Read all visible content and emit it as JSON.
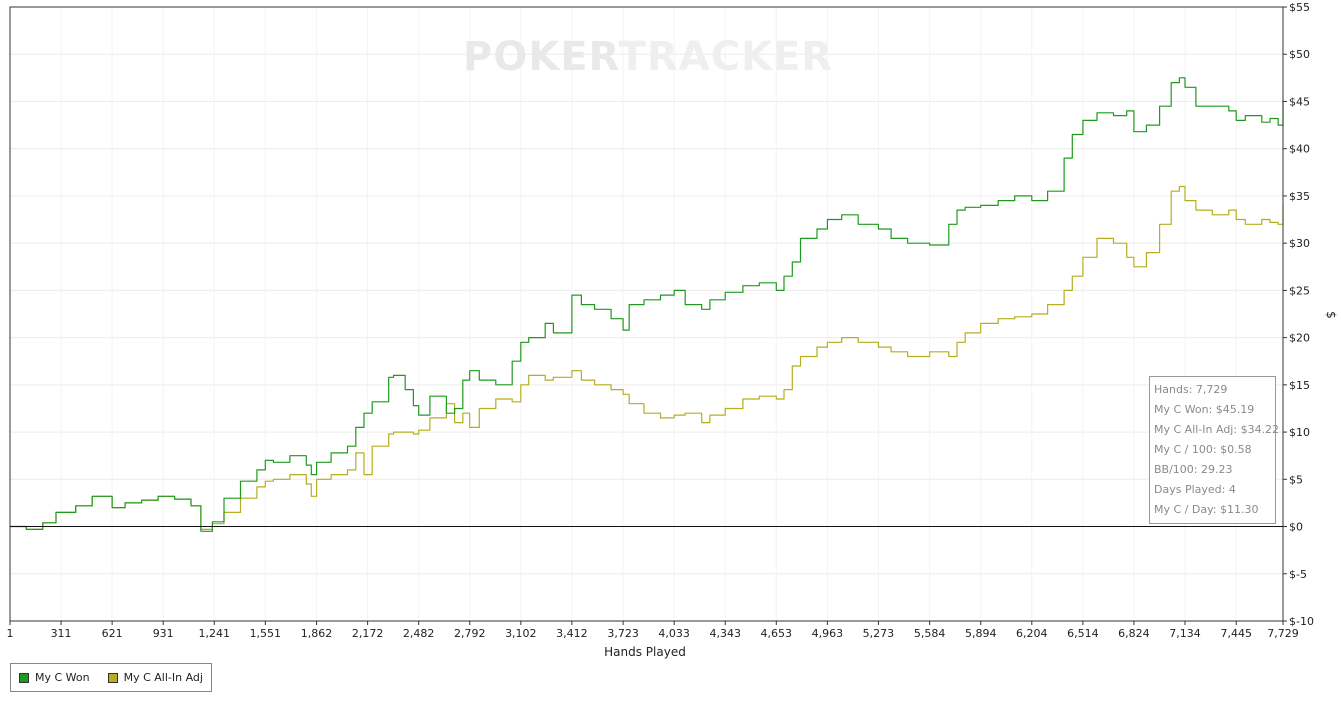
{
  "watermark": {
    "text_left": "POKER",
    "text_right": "TRACKER"
  },
  "stats": {
    "hands": "Hands: 7,729",
    "won": "My C Won: $45.19",
    "allin": "My C All-In Adj: $34.22",
    "per100": "My C / 100: $0.58",
    "bb100": "BB/100: 29.23",
    "days": "Days Played: 4",
    "per_day": "My C / Day: $11.30"
  },
  "chart_data": {
    "type": "line",
    "xlabel": "Hands Played",
    "ylabel": "$",
    "xlim": [
      1,
      7729
    ],
    "ylim": [
      -10,
      55
    ],
    "x_ticks": [
      1,
      311,
      621,
      931,
      1241,
      1551,
      1862,
      2172,
      2482,
      2792,
      3102,
      3412,
      3723,
      4033,
      4343,
      4653,
      4963,
      5273,
      5584,
      5894,
      6204,
      6514,
      6824,
      7134,
      7445,
      7729
    ],
    "x_tick_labels": [
      "1",
      "311",
      "621",
      "931",
      "1,241",
      "1,551",
      "1,862",
      "2,172",
      "2,482",
      "2,792",
      "3,102",
      "3,412",
      "3,723",
      "4,033",
      "4,343",
      "4,653",
      "4,963",
      "5,273",
      "5,584",
      "5,894",
      "6,204",
      "6,514",
      "6,824",
      "7,134",
      "7,445",
      "7,729"
    ],
    "y_ticks": [
      -10,
      -5,
      0,
      5,
      10,
      15,
      20,
      25,
      30,
      35,
      40,
      45,
      50,
      55
    ],
    "y_tick_labels": [
      "$-10",
      "$-5",
      "$0",
      "$5",
      "$10",
      "$15",
      "$20",
      "$25",
      "$30",
      "$35",
      "$40",
      "$45",
      "$50",
      "$55"
    ],
    "grid": true,
    "legend_position": "bottom-left",
    "series": [
      {
        "name": "My C Won",
        "color": "#1f9a1f",
        "x": [
          1,
          100,
          200,
          280,
          400,
          500,
          621,
          700,
          800,
          900,
          1000,
          1100,
          1160,
          1230,
          1300,
          1400,
          1500,
          1551,
          1600,
          1700,
          1800,
          1830,
          1862,
          1950,
          2050,
          2100,
          2150,
          2200,
          2300,
          2330,
          2400,
          2450,
          2482,
          2550,
          2650,
          2700,
          2750,
          2792,
          2850,
          2950,
          3050,
          3102,
          3150,
          3250,
          3300,
          3412,
          3470,
          3550,
          3650,
          3723,
          3760,
          3850,
          3950,
          4033,
          4100,
          4200,
          4250,
          4343,
          4450,
          4550,
          4653,
          4700,
          4750,
          4800,
          4900,
          4963,
          5050,
          5150,
          5273,
          5350,
          5450,
          5584,
          5700,
          5750,
          5800,
          5894,
          6000,
          6100,
          6204,
          6300,
          6400,
          6450,
          6514,
          6600,
          6700,
          6780,
          6824,
          6900,
          6980,
          7050,
          7100,
          7134,
          7200,
          7300,
          7400,
          7445,
          7500,
          7600,
          7650,
          7700,
          7729
        ],
        "y": [
          0,
          -0.3,
          0.4,
          1.5,
          2.2,
          3.2,
          2.0,
          2.5,
          2.8,
          3.2,
          2.9,
          2.2,
          -0.5,
          0.5,
          3.0,
          4.8,
          6.0,
          7.0,
          6.8,
          7.5,
          6.5,
          5.5,
          6.8,
          7.8,
          8.5,
          10.5,
          12.0,
          13.2,
          15.8,
          16.0,
          14.5,
          12.8,
          11.8,
          13.8,
          12.0,
          12.5,
          15.5,
          16.5,
          15.5,
          15.0,
          17.5,
          19.5,
          20.0,
          21.5,
          20.5,
          24.5,
          23.5,
          23.0,
          22.0,
          20.8,
          23.5,
          24.0,
          24.5,
          25.0,
          23.5,
          23.0,
          24.0,
          24.8,
          25.5,
          25.8,
          25.0,
          26.5,
          28.0,
          30.5,
          31.5,
          32.5,
          33.0,
          32.0,
          31.5,
          30.5,
          30.0,
          29.8,
          32.0,
          33.5,
          33.8,
          34.0,
          34.5,
          35.0,
          34.5,
          35.5,
          39.0,
          41.5,
          43.0,
          43.8,
          43.5,
          44.0,
          41.8,
          42.5,
          44.5,
          47.0,
          47.5,
          46.5,
          44.5,
          44.5,
          44.0,
          43.0,
          43.5,
          42.8,
          43.2,
          42.5,
          45.19
        ]
      },
      {
        "name": "My C All-In Adj",
        "color": "#b5ae1e",
        "x": [
          1,
          100,
          200,
          280,
          400,
          500,
          621,
          700,
          800,
          900,
          1000,
          1100,
          1160,
          1230,
          1300,
          1400,
          1500,
          1551,
          1600,
          1700,
          1800,
          1830,
          1862,
          1950,
          2050,
          2100,
          2150,
          2200,
          2300,
          2330,
          2400,
          2450,
          2482,
          2550,
          2650,
          2700,
          2750,
          2792,
          2850,
          2950,
          3050,
          3102,
          3150,
          3250,
          3300,
          3412,
          3470,
          3550,
          3650,
          3723,
          3760,
          3850,
          3950,
          4033,
          4100,
          4200,
          4250,
          4343,
          4450,
          4550,
          4653,
          4700,
          4750,
          4800,
          4900,
          4963,
          5050,
          5150,
          5273,
          5350,
          5450,
          5584,
          5700,
          5750,
          5800,
          5894,
          6000,
          6100,
          6204,
          6300,
          6400,
          6450,
          6514,
          6600,
          6700,
          6780,
          6824,
          6900,
          6980,
          7050,
          7100,
          7134,
          7200,
          7300,
          7400,
          7445,
          7500,
          7600,
          7650,
          7700,
          7729
        ],
        "y": [
          0,
          -0.3,
          0.4,
          1.5,
          2.2,
          3.2,
          2.0,
          2.5,
          2.8,
          3.2,
          2.9,
          2.2,
          -0.3,
          0.3,
          1.5,
          3.0,
          4.2,
          4.8,
          5.0,
          5.5,
          4.5,
          3.2,
          5.0,
          5.5,
          6.0,
          7.8,
          5.5,
          8.5,
          9.8,
          10.0,
          10.0,
          9.8,
          10.2,
          11.5,
          13.0,
          11.0,
          12.0,
          10.5,
          12.5,
          13.5,
          13.2,
          15.0,
          16.0,
          15.5,
          15.8,
          16.5,
          15.5,
          15.0,
          14.5,
          14.0,
          13.0,
          12.0,
          11.5,
          11.8,
          12.0,
          11.0,
          11.8,
          12.5,
          13.5,
          13.8,
          13.5,
          14.5,
          17.0,
          18.0,
          19.0,
          19.5,
          20.0,
          19.5,
          19.0,
          18.5,
          18.0,
          18.5,
          18.0,
          19.5,
          20.5,
          21.5,
          22.0,
          22.2,
          22.5,
          23.5,
          25.0,
          26.5,
          28.5,
          30.5,
          30.0,
          28.5,
          27.5,
          29.0,
          32.0,
          35.5,
          36.0,
          34.5,
          33.5,
          33.0,
          33.5,
          32.5,
          32.0,
          32.5,
          32.2,
          32.0,
          34.22
        ]
      }
    ]
  }
}
